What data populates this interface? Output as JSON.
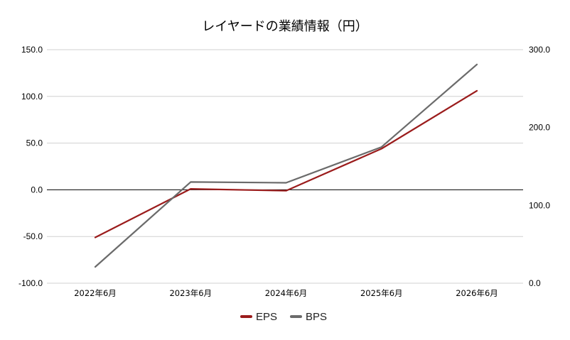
{
  "chart_data": {
    "type": "line",
    "title": "レイヤードの業績情報（円）",
    "categories": [
      "2022年6月",
      "2023年6月",
      "2024年6月",
      "2025年6月",
      "2026年6月"
    ],
    "series": [
      {
        "name": "EPS",
        "axis": "left",
        "color": "#9b1c1c",
        "values": [
          -51.0,
          1.0,
          -1.0,
          44.0,
          106.0
        ]
      },
      {
        "name": "BPS",
        "axis": "right",
        "color": "#6b6b6b",
        "values": [
          21.0,
          130.0,
          129.0,
          175.0,
          281.0
        ]
      }
    ],
    "y_left": {
      "min": -100,
      "max": 150,
      "ticks": [
        "-100.0",
        "-50.0",
        "0.0",
        "50.0",
        "100.0",
        "150.0"
      ]
    },
    "y_right": {
      "min": 0,
      "max": 300,
      "ticks": [
        "0.0",
        "100.0",
        "200.0",
        "300.0"
      ]
    },
    "grid": true,
    "legend_position": "bottom"
  }
}
